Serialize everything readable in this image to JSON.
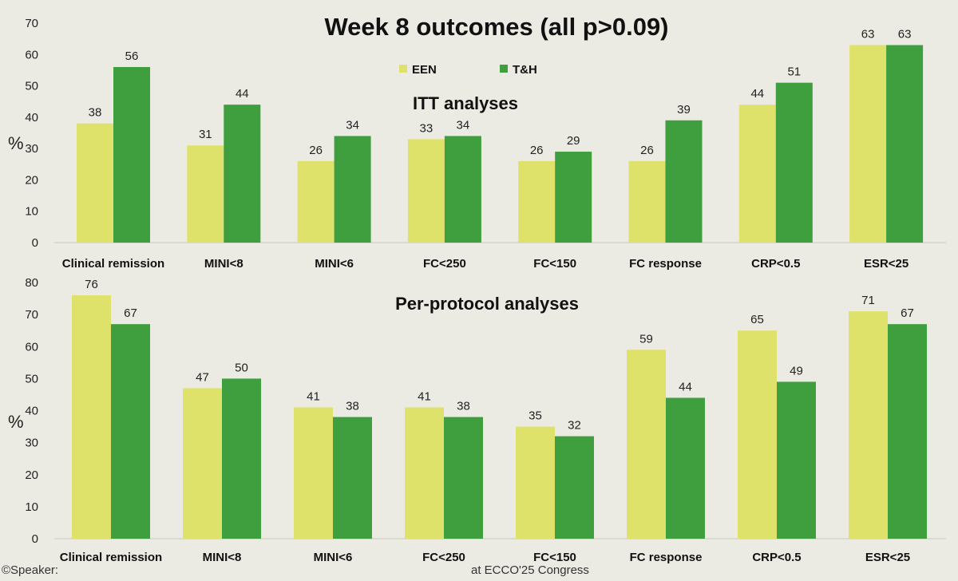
{
  "slide": {
    "title": "Week 8 outcomes (all p>0.09)",
    "footer_left": "©Speaker:",
    "footer_center": "at ECCO'25 Congress"
  },
  "colors": {
    "een": "#dfe26a",
    "th": "#3f9e3d",
    "background": "#ebebe3"
  },
  "chart_data": [
    {
      "type": "bar",
      "title": "ITT analyses",
      "ylabel": "%",
      "xlabel": "",
      "ylim": [
        0,
        70
      ],
      "yticks": [
        0,
        10,
        20,
        30,
        40,
        50,
        60,
        70
      ],
      "legend": "top-center",
      "categories": [
        "Clinical remission",
        "MINI<8",
        "MINI<6",
        "FC<250",
        "FC<150",
        "FC response",
        "CRP<0.5",
        "ESR<25"
      ],
      "series": [
        {
          "name": "EEN",
          "color": "#dfe26a",
          "values": [
            38,
            31,
            26,
            33,
            26,
            26,
            44,
            63
          ]
        },
        {
          "name": "T&H",
          "color": "#3f9e3d",
          "values": [
            56,
            44,
            34,
            34,
            29,
            39,
            51,
            63
          ]
        }
      ]
    },
    {
      "type": "bar",
      "title": "Per-protocol analyses",
      "ylabel": "%",
      "xlabel": "",
      "ylim": [
        0,
        80
      ],
      "yticks": [
        0,
        10,
        20,
        30,
        40,
        50,
        60,
        70,
        80
      ],
      "categories": [
        "Clinical remission",
        "MINI<8",
        "MINI<6",
        "FC<250",
        "FC<150",
        "FC response",
        "CRP<0.5",
        "ESR<25"
      ],
      "series": [
        {
          "name": "EEN",
          "color": "#dfe26a",
          "values": [
            76,
            47,
            41,
            41,
            35,
            59,
            65,
            71
          ]
        },
        {
          "name": "T&H",
          "color": "#3f9e3d",
          "values": [
            67,
            50,
            38,
            38,
            32,
            44,
            49,
            67
          ]
        }
      ]
    }
  ]
}
